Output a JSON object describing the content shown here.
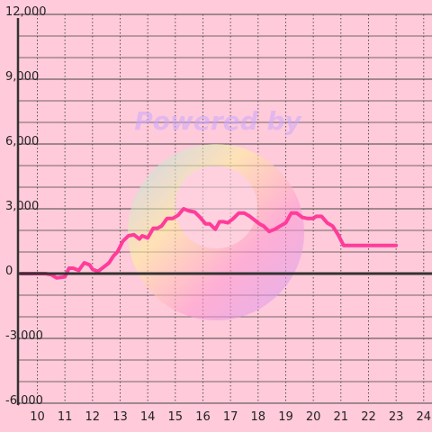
{
  "chart_data": {
    "type": "line",
    "x": [
      9.4,
      10.0,
      10.3,
      10.5,
      10.7,
      11.0,
      11.15,
      11.3,
      11.5,
      11.7,
      11.9,
      12.0,
      12.2,
      12.4,
      12.6,
      12.75,
      12.9,
      13.1,
      13.3,
      13.5,
      13.7,
      13.8,
      14.0,
      14.2,
      14.35,
      14.5,
      14.7,
      14.9,
      15.1,
      15.3,
      15.5,
      15.7,
      15.9,
      16.1,
      16.25,
      16.45,
      16.6,
      16.75,
      16.9,
      17.1,
      17.3,
      17.5,
      17.7,
      17.9,
      18.05,
      18.2,
      18.4,
      18.6,
      18.8,
      19.0,
      19.2,
      19.4,
      19.6,
      19.8,
      20.0,
      20.1,
      20.3,
      20.5,
      20.7,
      20.9,
      21.1,
      21.3,
      21.5,
      22.0,
      22.5,
      23.0
    ],
    "series": [
      {
        "values": [
          0,
          0,
          0,
          -50,
          -200,
          -150,
          250,
          250,
          150,
          500,
          400,
          200,
          100,
          300,
          500,
          800,
          1000,
          1500,
          1750,
          1800,
          1600,
          1750,
          1650,
          2100,
          2100,
          2200,
          2550,
          2550,
          2700,
          3000,
          2900,
          2850,
          2600,
          2300,
          2300,
          2050,
          2400,
          2400,
          2350,
          2550,
          2800,
          2800,
          2650,
          2450,
          2300,
          2200,
          1950,
          2050,
          2200,
          2350,
          2800,
          2800,
          2600,
          2550,
          2550,
          2650,
          2650,
          2350,
          2200,
          1800,
          1300,
          1300,
          1300,
          1300,
          1300,
          1300
        ]
      }
    ],
    "xticks": [
      "10",
      "11",
      "12",
      "13",
      "14",
      "15",
      "16",
      "17",
      "18",
      "19",
      "20",
      "21",
      "22",
      "23",
      "24"
    ],
    "yticks": [
      "12,000",
      "9,000",
      "6,000",
      "3,000",
      "0",
      "-3,000",
      "-6,000"
    ],
    "xlim": [
      9.3,
      24.3
    ],
    "ylim": [
      -6000,
      12000
    ],
    "title": "",
    "xlabel": "",
    "ylabel": "",
    "grid": true,
    "legend": "none",
    "watermark": "Powered by",
    "colors": {
      "background": "#ffcada",
      "line": "#ff3c9a",
      "major_grid": "#444444",
      "minor_grid": "#444444",
      "axis": "#333333",
      "watermark": "#c9a9ff"
    }
  }
}
